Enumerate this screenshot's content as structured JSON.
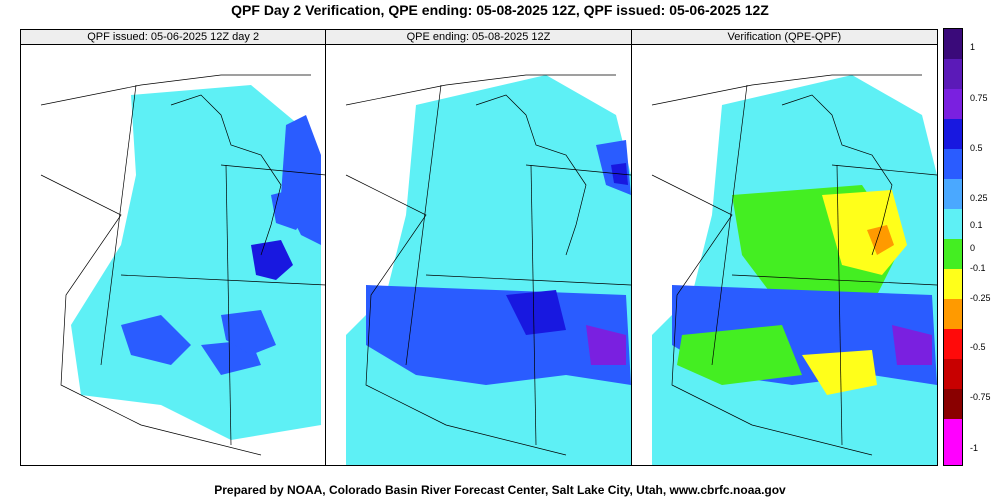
{
  "header": {
    "title": "QPF Day 2 Verification, QPE ending: 05-08-2025 12Z, QPF issued: 05-06-2025 12Z"
  },
  "panels": [
    {
      "title": "QPF issued: 05-06-2025 12Z day 2"
    },
    {
      "title": "QPE ending: 05-08-2025 12Z"
    },
    {
      "title": "Verification (QPE-QPF)"
    }
  ],
  "colorbar": {
    "labels": [
      "1",
      "0.75",
      "0.5",
      "0.25",
      "0.1",
      "0",
      "-0.1",
      "-0.25",
      "-0.5",
      "-0.75",
      "-1"
    ],
    "colors": [
      "#3a0a7a",
      "#5b1ab8",
      "#7a20e0",
      "#1818e0",
      "#2a5cff",
      "#4aa8ff",
      "#5ef0f5",
      "#44ee22",
      "#ffff1a",
      "#ff9a00",
      "#ff0a0a",
      "#c80000",
      "#8a0000",
      "#ff00ff"
    ]
  },
  "footer": {
    "credit": "Prepared by NOAA, Colorado Basin River Forecast Center, Salt Lake City, Utah, www.cbrfc.noaa.gov"
  },
  "map_colors": {
    "light_cyan": "#5ef0f5",
    "mid_blue": "#2a5cff",
    "dark_blue": "#1818e0",
    "purple": "#7a20e0",
    "green": "#44ee22",
    "yellow": "#ffff1a",
    "orange": "#ff9a00"
  }
}
